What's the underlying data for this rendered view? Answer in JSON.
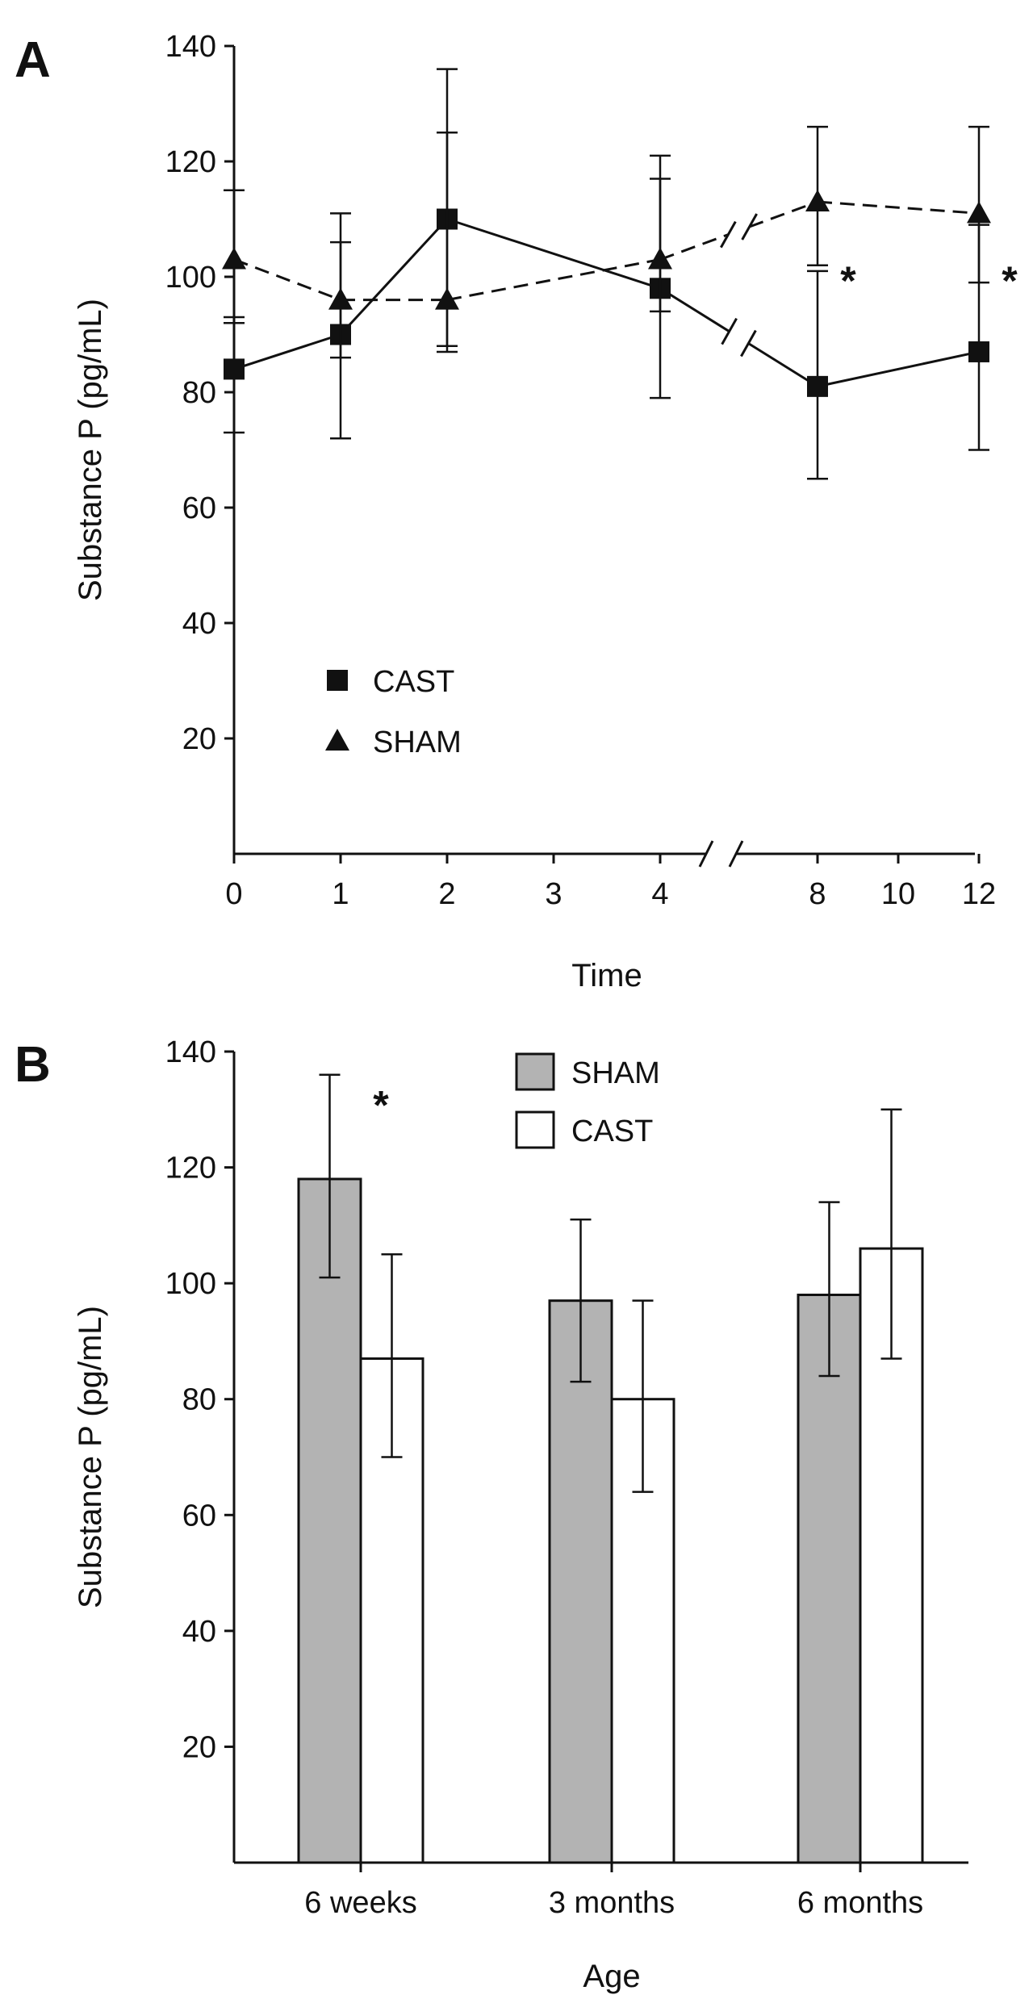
{
  "chart_data": [
    {
      "panel": "A",
      "type": "line",
      "xlabel": "Time",
      "ylabel": "Substance P (pg/mL)",
      "ylim": [
        0,
        140
      ],
      "yticks": [
        20,
        40,
        60,
        80,
        100,
        120,
        140
      ],
      "xticks": [
        "0",
        "1",
        "2",
        "3",
        "4",
        "8",
        "10",
        "12"
      ],
      "axis_break": "x between 4 and 8",
      "series": [
        {
          "name": "CAST",
          "marker": "square",
          "line": "solid",
          "x": [
            0,
            1,
            2,
            4,
            8,
            12
          ],
          "values": [
            84,
            90,
            110,
            98,
            81,
            87
          ],
          "err_low": [
            73,
            72,
            88,
            79,
            65,
            70
          ],
          "err_high": [
            93,
            106,
            136,
            117,
            101,
            109
          ]
        },
        {
          "name": "SHAM",
          "marker": "triangle",
          "line": "dashed",
          "x": [
            0,
            1,
            2,
            4,
            8,
            12
          ],
          "values": [
            103,
            96,
            96,
            103,
            113,
            111
          ],
          "err_low": [
            92,
            86,
            87,
            94,
            102,
            99
          ],
          "err_high": [
            115,
            111,
            125,
            121,
            126,
            126
          ]
        }
      ],
      "legend": [
        "CAST",
        "SHAM"
      ],
      "annotations": [
        {
          "text": "*",
          "x": 8
        },
        {
          "text": "*",
          "x": 12
        }
      ]
    },
    {
      "panel": "B",
      "type": "bar",
      "xlabel": "Age",
      "ylabel": "Substance P (pg/mL)",
      "ylim": [
        0,
        140
      ],
      "yticks": [
        20,
        40,
        60,
        80,
        100,
        120,
        140
      ],
      "categories": [
        "6 weeks",
        "3 months",
        "6 months"
      ],
      "series": [
        {
          "name": "SHAM",
          "color": "#b3b3b3",
          "values": [
            118,
            97,
            98
          ],
          "err_low": [
            101,
            83,
            84
          ],
          "err_high": [
            136,
            111,
            114
          ]
        },
        {
          "name": "CAST",
          "color": "#ffffff",
          "values": [
            87,
            80,
            106
          ],
          "err_low": [
            70,
            64,
            87
          ],
          "err_high": [
            105,
            97,
            130
          ]
        }
      ],
      "legend": [
        "SHAM",
        "CAST"
      ],
      "annotations": [
        {
          "text": "*",
          "category": "6 weeks"
        }
      ]
    }
  ],
  "panels": {
    "a": {
      "label": "A"
    },
    "b": {
      "label": "B"
    }
  }
}
